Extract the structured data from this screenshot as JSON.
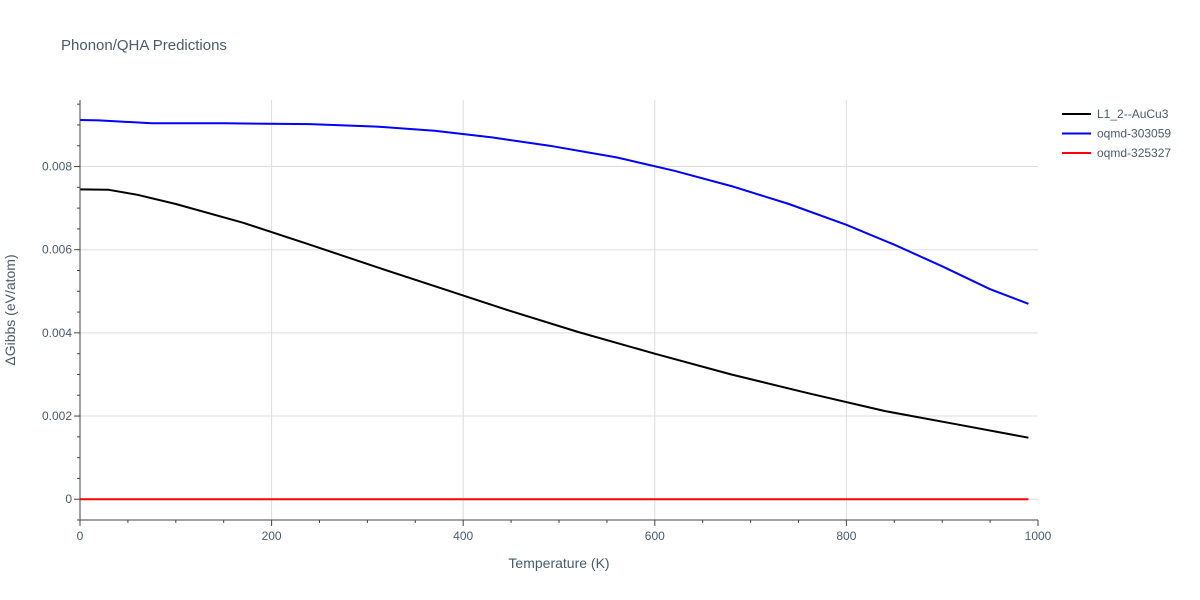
{
  "chart_data": {
    "type": "line",
    "title": "Phonon/QHA Predictions",
    "xlabel": "Temperature (K)",
    "ylabel": "ΔGibbs (eV/atom)",
    "xlim": [
      0,
      1000
    ],
    "ylim": [
      -0.0005,
      0.0096
    ],
    "xticks": [
      0,
      200,
      400,
      600,
      800,
      1000
    ],
    "yticks": [
      0,
      0.002,
      0.004,
      0.006,
      0.008
    ],
    "xtick_labels": [
      "0",
      "200",
      "400",
      "600",
      "800",
      "1000"
    ],
    "ytick_labels": [
      "0",
      "0.002",
      "0.004",
      "0.006",
      "0.008"
    ],
    "grid": true,
    "legend_position": "top-right",
    "series": [
      {
        "name": "L1_2--AuCu3",
        "color": "#000000",
        "x": [
          0,
          30,
          60,
          100,
          170,
          240,
          310,
          380,
          450,
          520,
          600,
          680,
          760,
          840,
          920,
          990
        ],
        "y": [
          0.00745,
          0.00744,
          0.00732,
          0.0071,
          0.00665,
          0.00612,
          0.00558,
          0.00505,
          0.00452,
          0.00402,
          0.0035,
          0.003,
          0.00255,
          0.00212,
          0.00178,
          0.00148
        ]
      },
      {
        "name": "oqmd-303059",
        "color": "#0000ff",
        "x": [
          0,
          20,
          75,
          150,
          240,
          310,
          370,
          430,
          490,
          560,
          620,
          680,
          740,
          800,
          850,
          900,
          950,
          990
        ],
        "y": [
          0.00912,
          0.00911,
          0.00904,
          0.00904,
          0.00902,
          0.00896,
          0.00886,
          0.0087,
          0.0085,
          0.00822,
          0.0079,
          0.00753,
          0.0071,
          0.0066,
          0.00612,
          0.0056,
          0.00505,
          0.0047
        ]
      },
      {
        "name": "oqmd-325327",
        "color": "#ff0000",
        "x": [
          0,
          990
        ],
        "y": [
          0,
          0
        ]
      }
    ]
  }
}
